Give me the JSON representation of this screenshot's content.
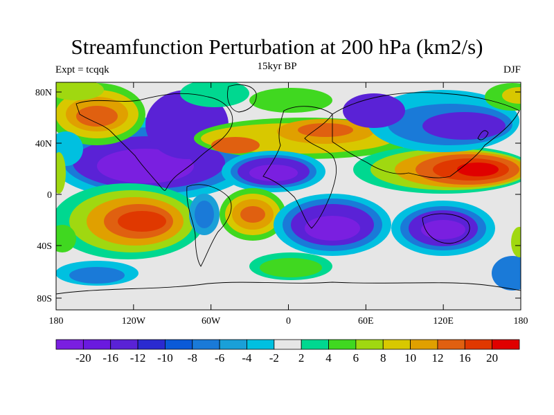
{
  "map": {
    "title": "Streamfunction Perturbation at 200 hPa (km2/s)",
    "subtitle": "15kyr BP",
    "left_label": "Expt = tcqqk",
    "right_label": "DJF",
    "lat_ticks": [
      "80N",
      "40N",
      "0",
      "40S",
      "80S"
    ],
    "lon_ticks": [
      "180",
      "120W",
      "60W",
      "0",
      "60E",
      "120E",
      "180"
    ],
    "colorbar": {
      "colors": [
        "#7a1fe0",
        "#6a1adf",
        "#5a22d6",
        "#2a2ad0",
        "#0a5ad8",
        "#1a7ad8",
        "#1aa0d8",
        "#00c0e0",
        "#e6e6e6",
        "#00d890",
        "#40d820",
        "#a0d810",
        "#d8c800",
        "#e0a000",
        "#e06010",
        "#e03800",
        "#e00000"
      ],
      "labels": [
        "-20",
        "-16",
        "-12",
        "-10",
        "-8",
        "-6",
        "-4",
        "-2",
        "2",
        "4",
        "6",
        "8",
        "10",
        "12",
        "16",
        "20"
      ]
    }
  }
}
